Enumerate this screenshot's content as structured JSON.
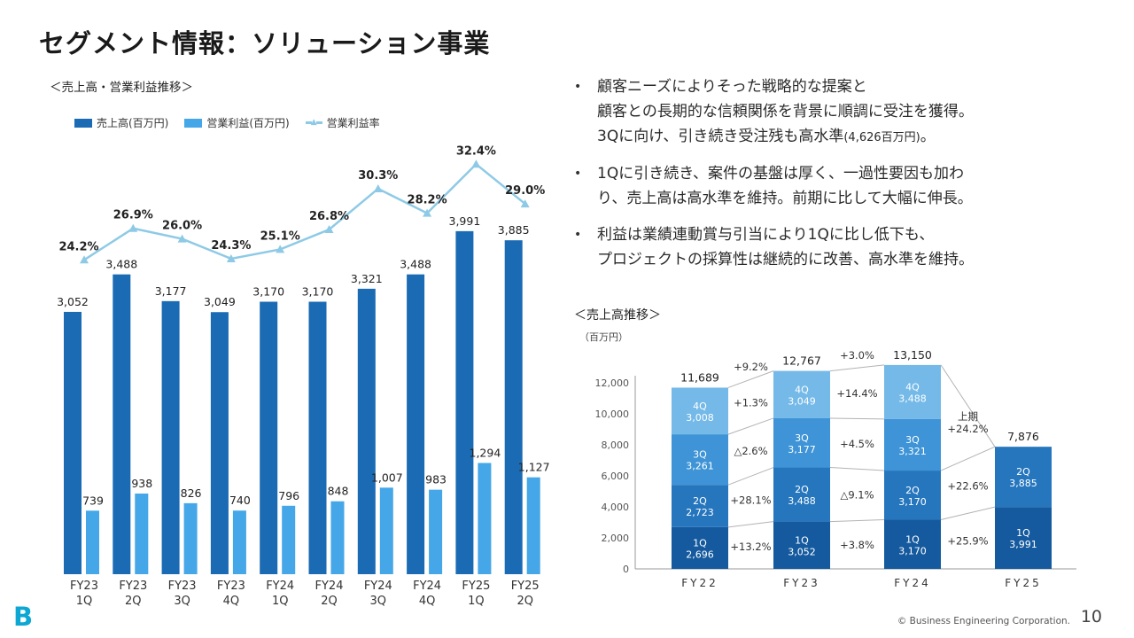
{
  "page": {
    "title": "セグメント情報：ソリューション事業",
    "page_number": "10",
    "copyright": "© Business Engineering Corporation.",
    "logo_letter": "B"
  },
  "bullet_char": "•",
  "bullets": [
    {
      "lines": [
        [
          "顧客ニーズによりそった戦略的な提案と"
        ],
        [
          "顧客との長期的な信頼関係を背景に順調に受注を獲得。"
        ],
        [
          "3Qに向け、引き続き受注残も高水準",
          {
            "text": "(4,626百万円)",
            "small": true
          },
          "。"
        ]
      ]
    },
    {
      "lines": [
        [
          "1Qに引き続き、案件の基盤は厚く、一過性要因も加わ"
        ],
        [
          "り、売上高は高水準を維持。前期に比して大幅に伸長。"
        ]
      ]
    },
    {
      "lines": [
        [
          "利益は業績連動賞与引当により1Qに比し低下も、"
        ],
        [
          "プロジェクトの採算性は継続的に改善、高水準を維持。"
        ]
      ]
    }
  ],
  "chart_data": [
    {
      "type": "bar",
      "variant": "combo-bar-line",
      "title": "＜売上高・営業利益推移＞",
      "categories": [
        [
          "FY23",
          "1Q"
        ],
        [
          "FY23",
          "2Q"
        ],
        [
          "FY23",
          "3Q"
        ],
        [
          "FY23",
          "4Q"
        ],
        [
          "FY24",
          "1Q"
        ],
        [
          "FY24",
          "2Q"
        ],
        [
          "FY24",
          "3Q"
        ],
        [
          "FY24",
          "4Q"
        ],
        [
          "FY25",
          "1Q"
        ],
        [
          "FY25",
          "2Q"
        ]
      ],
      "series": [
        {
          "name": "売上高(百万円)",
          "kind": "bar",
          "color": "#1a6bb4",
          "values": [
            3052,
            3488,
            3177,
            3049,
            3170,
            3170,
            3321,
            3488,
            3991,
            3885
          ]
        },
        {
          "name": "営業利益(百万円)",
          "kind": "bar",
          "color": "#45a6e8",
          "values": [
            739,
            938,
            826,
            740,
            796,
            848,
            1007,
            983,
            1294,
            1127
          ]
        },
        {
          "name": "営業利益率",
          "kind": "line",
          "color": "#8ecae6",
          "unit": "%",
          "values": [
            24.2,
            26.9,
            26.0,
            24.3,
            25.1,
            26.8,
            30.3,
            28.2,
            32.4,
            29.0
          ]
        }
      ]
    },
    {
      "type": "bar",
      "variant": "stacked",
      "title": "＜売上高推移＞",
      "unit_label": "（百万円）",
      "categories": [
        "FY22",
        "FY23",
        "FY24",
        "FY25"
      ],
      "y_ticks": [
        0,
        2000,
        4000,
        6000,
        8000,
        10000,
        12000
      ],
      "segments": [
        {
          "name": "1Q",
          "color": "#155a9e",
          "values": [
            2696,
            3052,
            3170,
            3991
          ]
        },
        {
          "name": "2Q",
          "color": "#2676be",
          "values": [
            2723,
            3488,
            3170,
            3885
          ]
        },
        {
          "name": "3Q",
          "color": "#3e94d6",
          "values": [
            3261,
            3177,
            3321,
            null
          ]
        },
        {
          "name": "4Q",
          "color": "#74b9e8",
          "values": [
            3008,
            3049,
            3488,
            null
          ]
        }
      ],
      "totals": [
        11689,
        12767,
        13150,
        7876
      ],
      "growth": [
        {
          "labels": [
            "+13.2%",
            "+28.1%",
            "△2.6%",
            "+1.3%"
          ],
          "total": "+9.2%"
        },
        {
          "labels": [
            "+3.8%",
            "△9.1%",
            "+4.5%",
            "+14.4%"
          ],
          "total": "+3.0%"
        },
        {
          "labels": [
            "+25.9%",
            "+22.6%"
          ],
          "total_lines": [
            "上期",
            "+24.2%"
          ]
        }
      ]
    }
  ]
}
